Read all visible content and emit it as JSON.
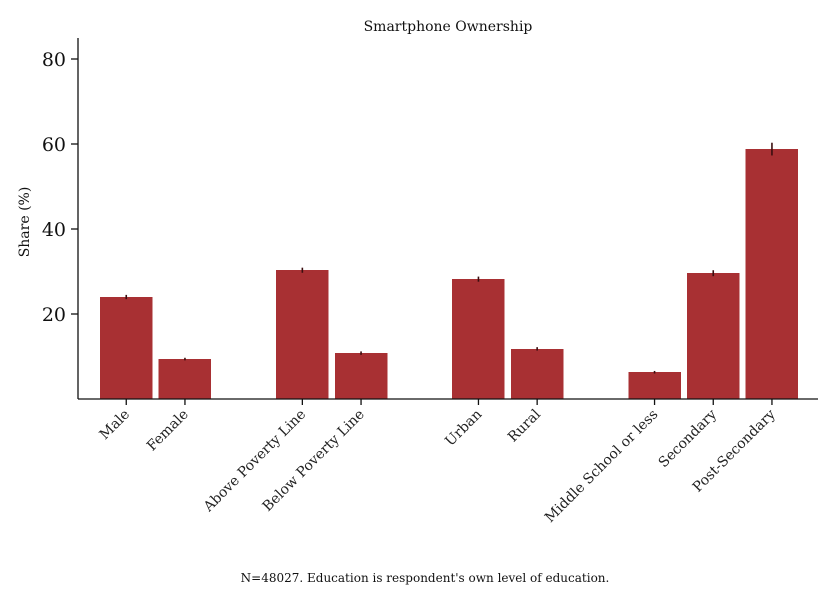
{
  "chart_data": {
    "type": "bar",
    "title": "Smartphone Ownership",
    "xlabel": "",
    "ylabel": "Share (%)",
    "ylim": [
      0,
      85
    ],
    "yticks": [
      20,
      40,
      60,
      80
    ],
    "grid": false,
    "legend": "none",
    "bar_color": "#A83033",
    "error_bar_color": "#3A0D0F",
    "groups": [
      [
        "Male",
        "Female"
      ],
      [
        "Above Poverty Line",
        "Below Poverty Line"
      ],
      [
        "Urban",
        "Rural"
      ],
      [
        "Middle School or less",
        "Secondary",
        "Post-Secondary"
      ]
    ],
    "categories": [
      "Male",
      "Female",
      "Above Poverty Line",
      "Below Poverty Line",
      "Urban",
      "Rural",
      "Middle School or less",
      "Secondary",
      "Post-Secondary"
    ],
    "values": [
      24.0,
      9.4,
      30.3,
      10.8,
      28.2,
      11.8,
      6.3,
      29.6,
      58.8
    ],
    "errors": [
      0.5,
      0.3,
      0.6,
      0.4,
      0.6,
      0.4,
      0.3,
      0.7,
      1.5
    ],
    "note": "N=48027. Education is respondent's own level of education."
  }
}
